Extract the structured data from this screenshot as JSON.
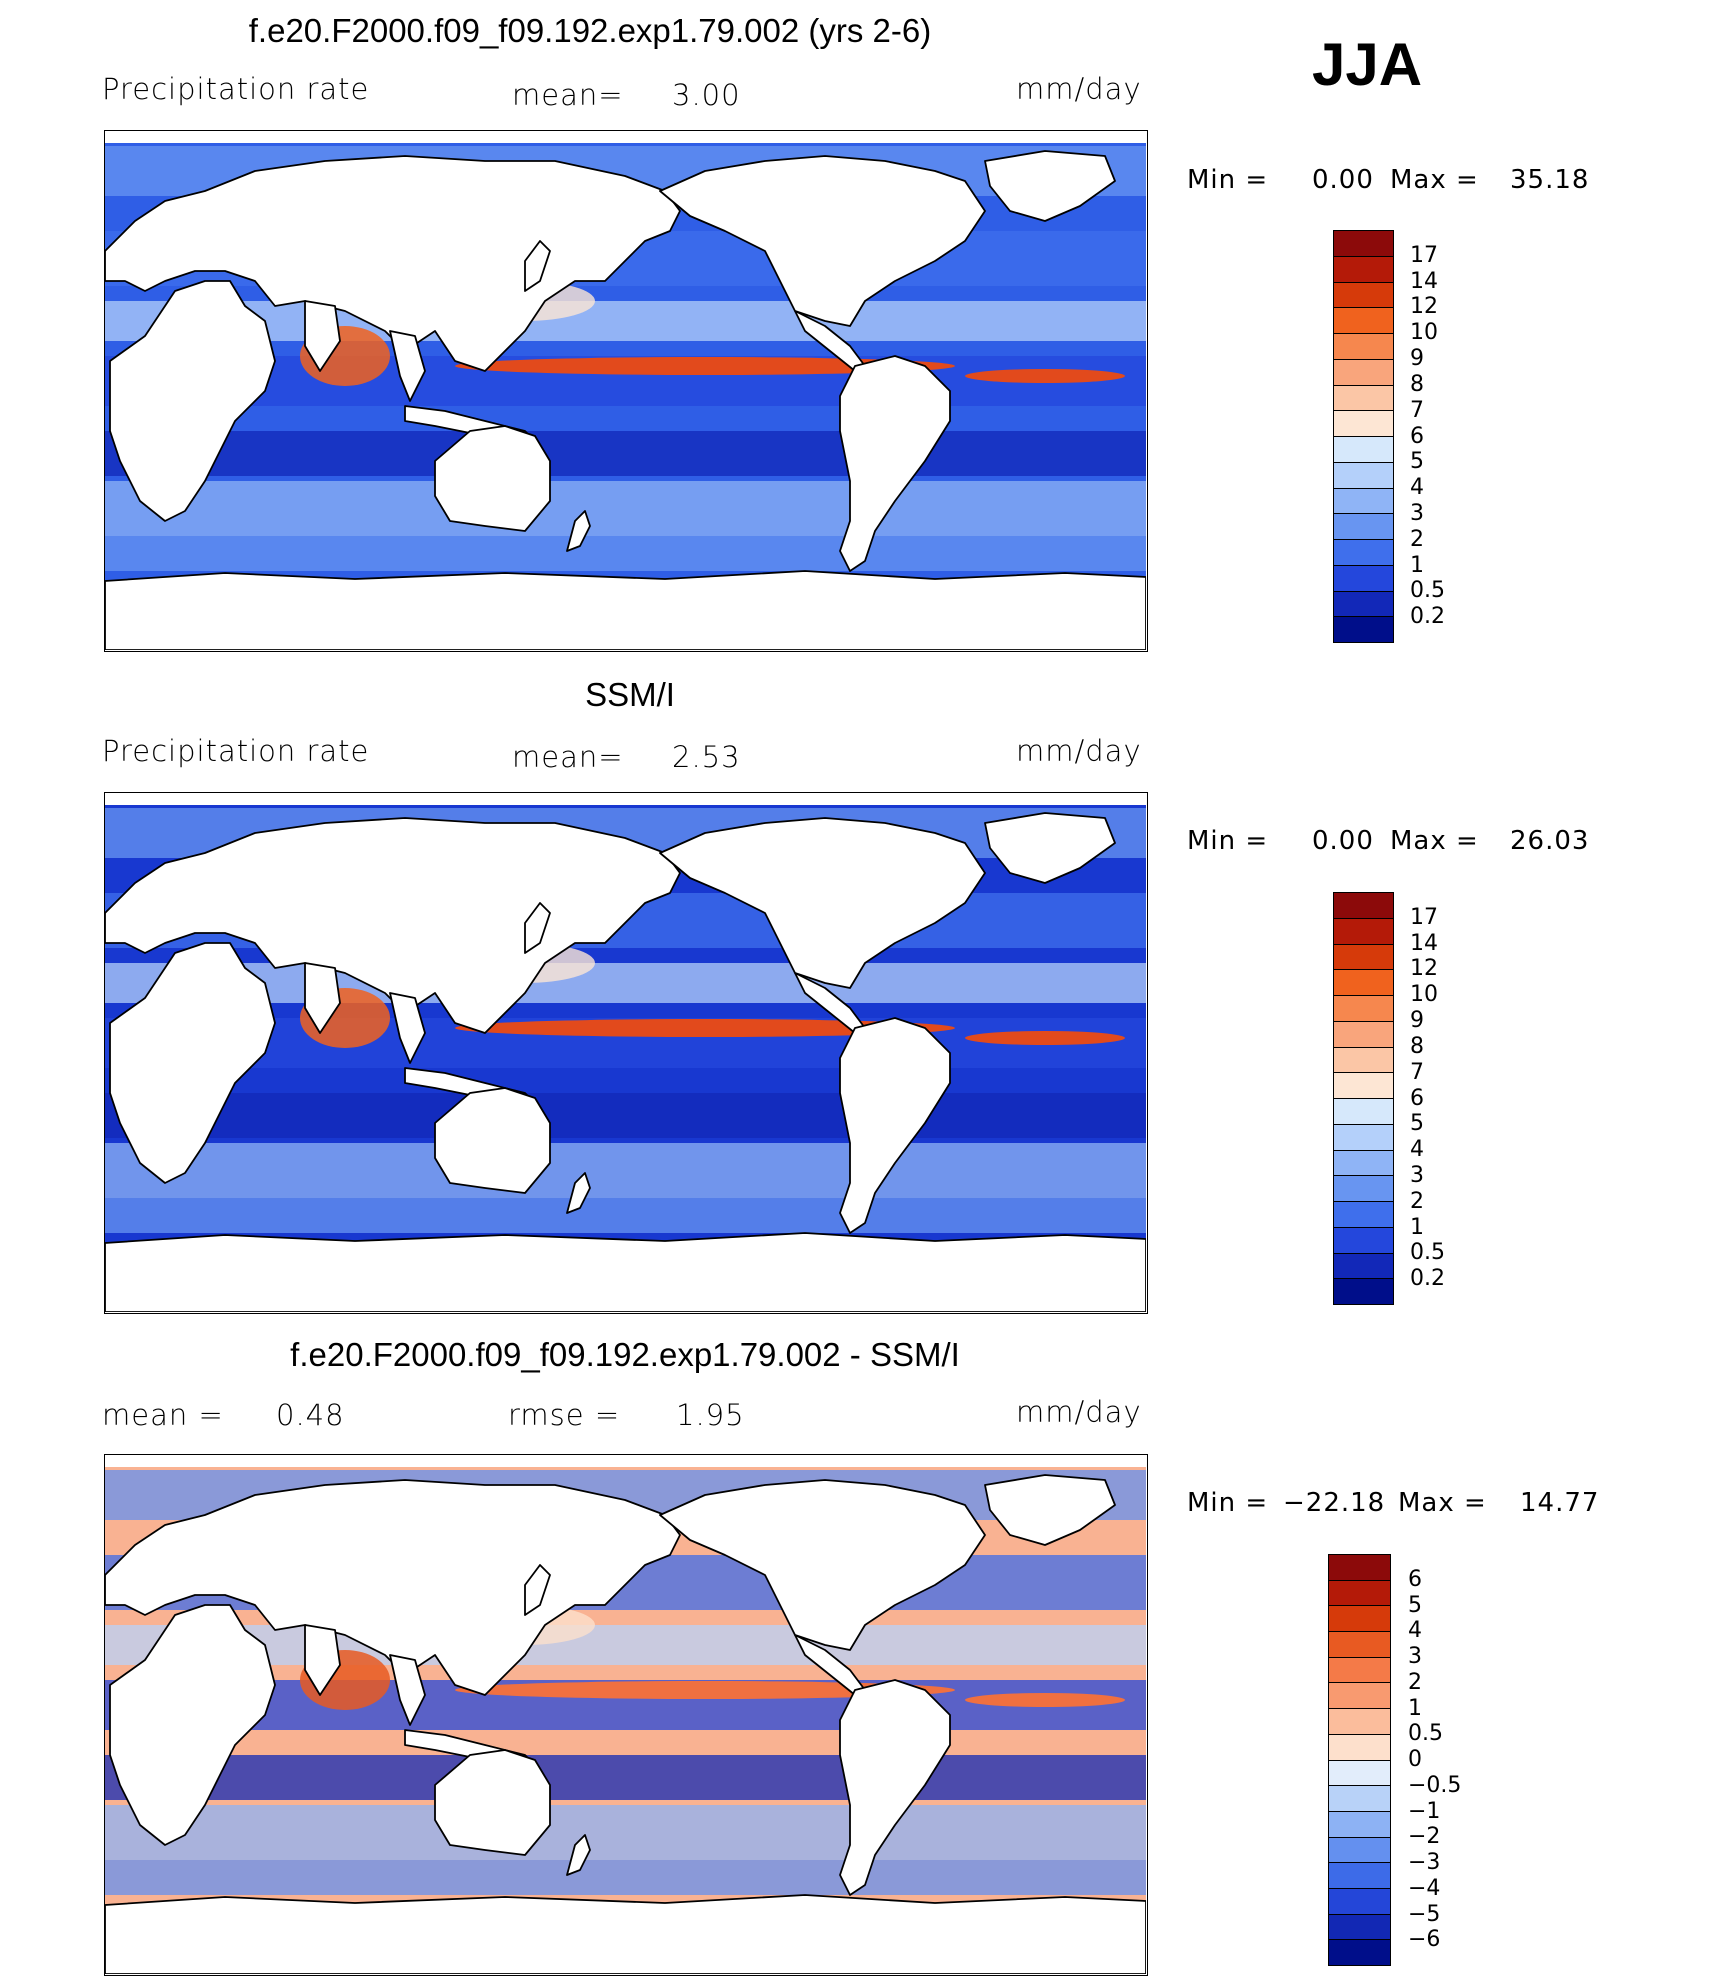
{
  "season": "JJA",
  "panels": [
    {
      "title": "f.e20.F2000.f09_f09.192.exp1.79.002 (yrs 2-6)",
      "left_label": "Precipitation  rate",
      "middle_label": "mean=",
      "middle_value": "3.00",
      "units": "mm/day",
      "min_label": "Min  =",
      "min_value": "0.00",
      "max_label": "Max  =",
      "max_value": "35.18",
      "colorbar": {
        "labels": [
          "17",
          "14",
          "12",
          "10",
          "9",
          "8",
          "7",
          "6",
          "5",
          "4",
          "3",
          "2",
          "1",
          "0.5",
          "0.2"
        ],
        "colors": [
          "#8c0a0a",
          "#b41a08",
          "#d63a0a",
          "#f0621e",
          "#f6874e",
          "#f9a57c",
          "#fbc6a6",
          "#fde6d4",
          "#d6e8fb",
          "#b4d0fa",
          "#8fb4f6",
          "#6895f1",
          "#3f6fec",
          "#2447dc",
          "#1228b8",
          "#000e8a"
        ]
      },
      "map_colors": {
        "ocean_base": "#2f5ee6",
        "band": "#e24a1c"
      }
    },
    {
      "title": "SSM/I",
      "left_label": "Precipitation  rate",
      "middle_label": "mean=",
      "middle_value": "2.53",
      "units": "mm/day",
      "min_label": "Min  =",
      "min_value": "0.00",
      "max_label": "Max  =",
      "max_value": "26.03",
      "colorbar": {
        "labels": [
          "17",
          "14",
          "12",
          "10",
          "9",
          "8",
          "7",
          "6",
          "5",
          "4",
          "3",
          "2",
          "1",
          "0.5",
          "0.2"
        ],
        "colors": [
          "#8c0a0a",
          "#b41a08",
          "#d63a0a",
          "#f0621e",
          "#f6874e",
          "#f9a57c",
          "#fbc6a6",
          "#fde6d4",
          "#d6e8fb",
          "#b4d0fa",
          "#8fb4f6",
          "#6895f1",
          "#3f6fec",
          "#2447dc",
          "#1228b8",
          "#000e8a"
        ]
      },
      "map_colors": {
        "ocean_base": "#1838d0",
        "band": "#e24a1c"
      }
    },
    {
      "title": "f.e20.F2000.f09_f09.192.exp1.79.002 - SSM/I",
      "left_label": "mean  =",
      "left_value": "0.48",
      "middle_label": "rmse  =",
      "middle_value": "1.95",
      "units": "mm/day",
      "min_label": "Min  =",
      "min_value": "−22.18",
      "max_label": "Max  =",
      "max_value": "14.77",
      "colorbar": {
        "labels": [
          "6",
          "5",
          "4",
          "3",
          "2",
          "1",
          "0.5",
          "0",
          "−0.5",
          "−1",
          "−2",
          "−3",
          "−4",
          "−5",
          "−6"
        ],
        "colors": [
          "#8c0a0a",
          "#b41a08",
          "#d63a0a",
          "#e85a22",
          "#f47a48",
          "#f89a70",
          "#fbbd9c",
          "#fde0cc",
          "#e2edfb",
          "#b8d2f8",
          "#8db2f4",
          "#6490ef",
          "#3d6be8",
          "#2446d8",
          "#1228b4",
          "#000e8a"
        ]
      },
      "map_colors": {
        "ocean_base": "#f9b292",
        "band": "#f07040"
      }
    }
  ]
}
